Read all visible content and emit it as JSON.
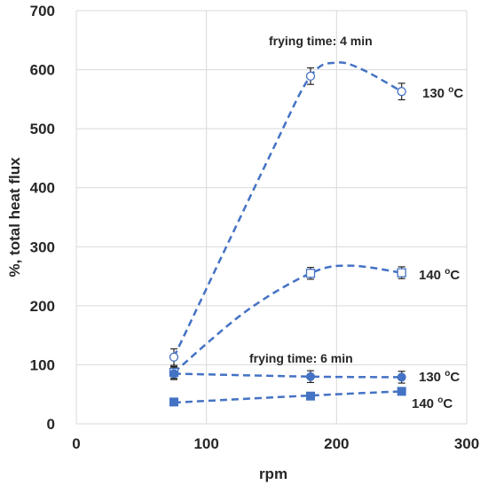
{
  "chart_data": {
    "type": "scatter",
    "title": "",
    "xlabel": "rpm",
    "ylabel": "%, total heat flux",
    "xlim": [
      0,
      300
    ],
    "ylim": [
      0,
      700
    ],
    "xticks": [
      "0",
      "100",
      "200",
      "300"
    ],
    "yticks": [
      "0",
      "100",
      "200",
      "300",
      "400",
      "500",
      "600",
      "700"
    ],
    "grid": true,
    "colors": {
      "series": "#4472c4",
      "curve": "#4472c4",
      "grid": "#d9d9d9",
      "errorbar": "#262626"
    },
    "annotations": [
      {
        "id": "t4",
        "text": "frying time: 4 min"
      },
      {
        "id": "t6",
        "text": "frying time: 6 min"
      }
    ],
    "series": [
      {
        "id": "s4_130",
        "marker": "open-circle",
        "temp_label": "130",
        "sup": "o",
        "unit": "C",
        "x": [
          75,
          180,
          250
        ],
        "y": [
          113,
          589,
          563
        ],
        "err": [
          14,
          14,
          14
        ],
        "curve": [
          [
            75,
            113
          ],
          [
            150,
            460
          ],
          [
            180,
            589
          ],
          [
            200,
            612
          ],
          [
            220,
            600
          ],
          [
            250,
            563
          ]
        ]
      },
      {
        "id": "s4_140",
        "marker": "open-square",
        "temp_label": "140",
        "sup": "o",
        "unit": "C",
        "x": [
          75,
          180,
          250
        ],
        "y": [
          87,
          255,
          256
        ],
        "err": [
          10,
          10,
          10
        ],
        "curve": [
          [
            75,
            87
          ],
          [
            130,
            190
          ],
          [
            180,
            255
          ],
          [
            210,
            268
          ],
          [
            250,
            256
          ]
        ]
      },
      {
        "id": "s6_130",
        "marker": "filled-circle",
        "temp_label": "130",
        "sup": "o",
        "unit": "C",
        "x": [
          75,
          180,
          250
        ],
        "y": [
          85,
          80,
          79
        ],
        "err": [
          10,
          10,
          10
        ],
        "curve": [
          [
            75,
            85
          ],
          [
            180,
            80
          ],
          [
            250,
            79
          ]
        ]
      },
      {
        "id": "s6_140",
        "marker": "filled-square",
        "temp_label": "140",
        "sup": "o",
        "unit": "C",
        "x": [
          75,
          180,
          250
        ],
        "y": [
          37,
          47,
          55
        ],
        "err": [
          3,
          5,
          3
        ],
        "curve": [
          [
            75,
            36
          ],
          [
            180,
            48
          ],
          [
            250,
            55
          ]
        ]
      }
    ]
  }
}
